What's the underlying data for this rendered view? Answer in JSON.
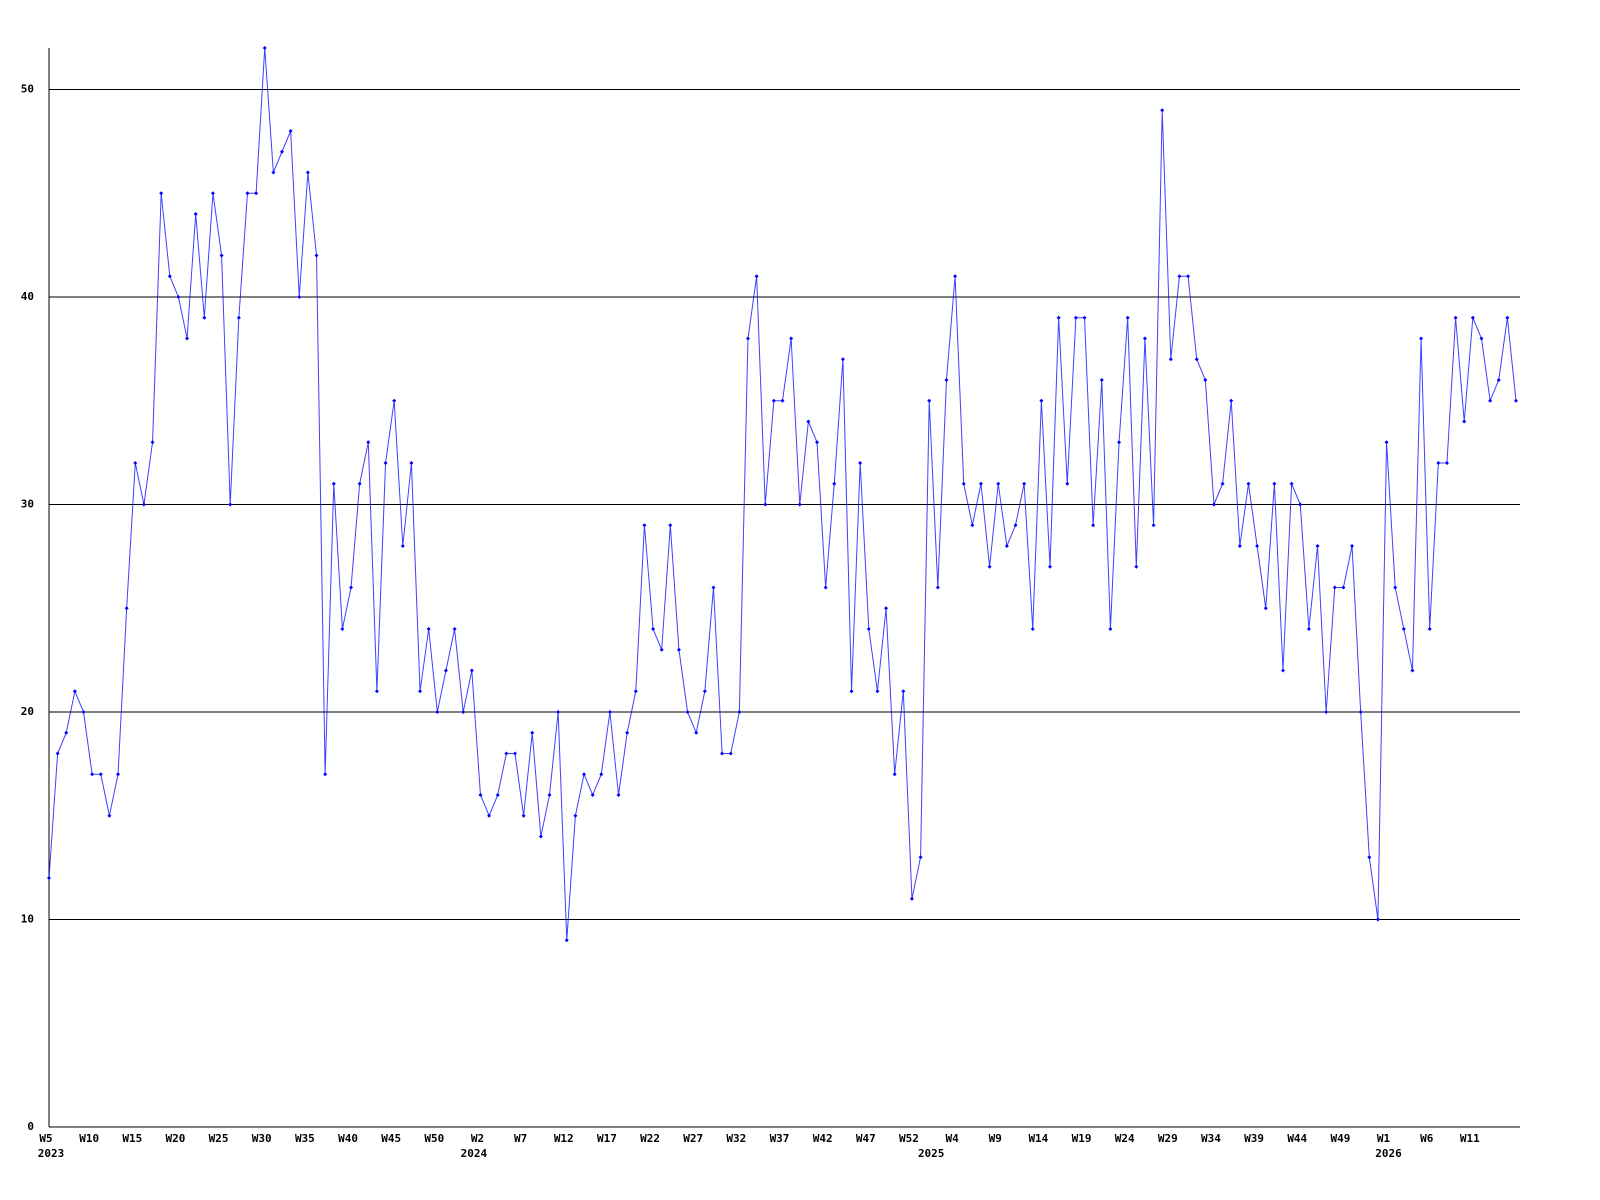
{
  "chart_data": {
    "type": "line",
    "categories": [
      "W5",
      null,
      null,
      null,
      null,
      "W10",
      null,
      null,
      null,
      null,
      "W15",
      null,
      null,
      null,
      null,
      "W20",
      null,
      null,
      null,
      null,
      "W25",
      null,
      null,
      null,
      null,
      "W30",
      null,
      null,
      null,
      null,
      "W35",
      null,
      null,
      null,
      null,
      "W40",
      null,
      null,
      null,
      null,
      "W45",
      null,
      null,
      null,
      null,
      "W50",
      null,
      null,
      null,
      null,
      "W2",
      null,
      null,
      null,
      null,
      "W7",
      null,
      null,
      null,
      null,
      "W12",
      null,
      null,
      null,
      null,
      "W17",
      null,
      null,
      null,
      null,
      "W22",
      null,
      null,
      null,
      null,
      "W27",
      null,
      null,
      null,
      null,
      "W32",
      null,
      null,
      null,
      null,
      "W37",
      null,
      null,
      null,
      null,
      "W42",
      null,
      null,
      null,
      null,
      "W47",
      null,
      null,
      null,
      null,
      "W52",
      null,
      null,
      null,
      null,
      "W4",
      null,
      null,
      null,
      null,
      "W9",
      null,
      null,
      null,
      null,
      "W14",
      null,
      null,
      null,
      null,
      "W19",
      null,
      null,
      null,
      null,
      "W24",
      null,
      null,
      null,
      null,
      "W29",
      null,
      null,
      null,
      null,
      "W34",
      null,
      null,
      null,
      null,
      "W39",
      null,
      null,
      null,
      null,
      "W44",
      null,
      null,
      null,
      null,
      "W49",
      null,
      null,
      null,
      null,
      "W1",
      null,
      null,
      null,
      null,
      "W6",
      null,
      null,
      null,
      null,
      "W11",
      null,
      null,
      null,
      null,
      null
    ],
    "year_labels": [
      {
        "index": 0,
        "label": "2023"
      },
      {
        "index": 49,
        "label": "2024"
      },
      {
        "index": 102,
        "label": "2025"
      },
      {
        "index": 155,
        "label": "2026"
      }
    ],
    "series": [
      {
        "color": "#0000ff",
        "values": [
          12,
          18,
          19,
          21,
          20,
          17,
          17,
          15,
          17,
          25,
          32,
          30,
          33,
          45,
          41,
          40,
          38,
          44,
          39,
          45,
          42,
          30,
          39,
          45,
          45,
          52,
          46,
          47,
          48,
          40,
          46,
          42,
          17,
          31,
          24,
          26,
          31,
          33,
          21,
          32,
          35,
          28,
          32,
          21,
          24,
          20,
          22,
          24,
          20,
          22,
          16,
          15,
          16,
          18,
          18,
          15,
          19,
          14,
          16,
          20,
          9,
          15,
          17,
          16,
          17,
          20,
          16,
          19,
          21,
          29,
          24,
          23,
          29,
          23,
          20,
          19,
          21,
          26,
          18,
          18,
          20,
          38,
          41,
          30,
          35,
          35,
          38,
          30,
          34,
          33,
          26,
          31,
          37,
          21,
          32,
          24,
          21,
          25,
          17,
          21,
          11,
          13,
          35,
          26,
          36,
          41,
          31,
          29,
          31,
          27,
          31,
          28,
          29,
          31,
          24,
          35,
          27,
          39,
          31,
          39,
          39,
          29,
          36,
          24,
          33,
          39,
          27,
          38,
          29,
          49,
          37,
          41,
          41,
          37,
          36,
          30,
          31,
          35,
          28,
          31,
          28,
          25,
          31,
          22,
          31,
          30,
          24,
          28,
          20,
          26,
          26,
          28,
          20,
          13,
          10,
          33,
          26,
          24,
          22,
          38,
          24,
          32,
          32,
          39,
          34,
          39,
          38,
          35,
          36,
          39,
          35
        ]
      }
    ],
    "ylim": [
      0,
      52
    ],
    "yticks": [
      0,
      10,
      20,
      30,
      40,
      50
    ],
    "grid": true
  }
}
